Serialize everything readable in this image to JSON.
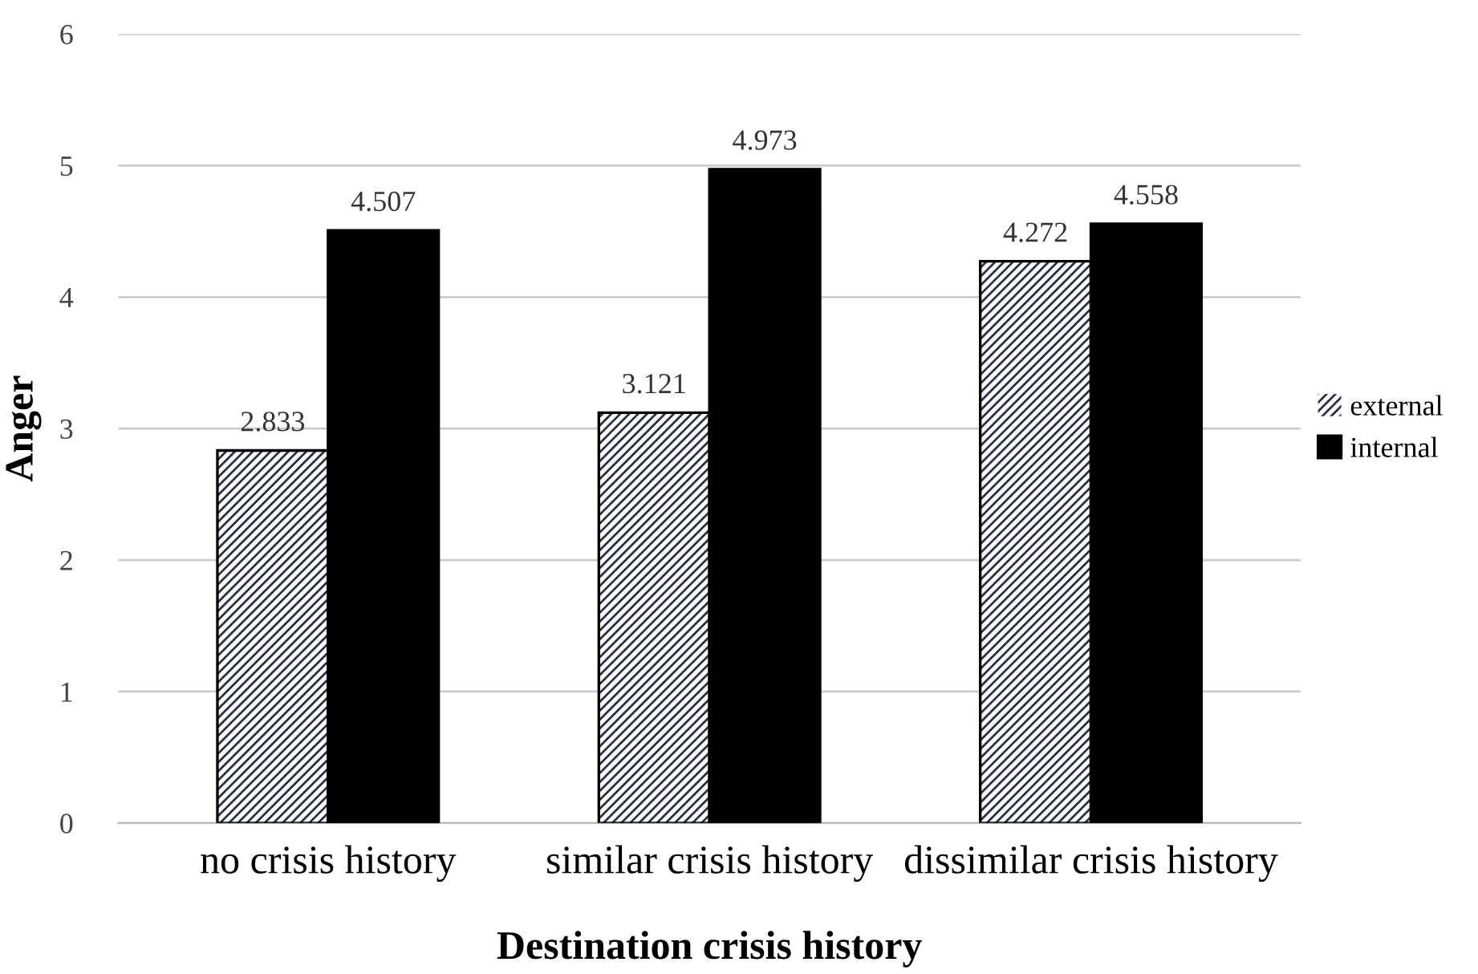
{
  "chart_data": {
    "type": "bar",
    "xlabel": "Destination crisis history",
    "ylabel": "Anger",
    "categories": [
      "no crisis history",
      "similar crisis history",
      "dissimilar crisis history"
    ],
    "series": [
      {
        "name": "external",
        "color": "#2b3145",
        "values": [
          2.833,
          3.121,
          4.272
        ]
      },
      {
        "name": "internal",
        "color": "#000000",
        "values": [
          4.507,
          4.973,
          4.558
        ]
      }
    ],
    "ylim": [
      0,
      6
    ],
    "yticks": [
      0,
      1,
      2,
      3,
      4,
      5,
      6
    ],
    "grid": "y",
    "legend": "right",
    "data_labels": true
  }
}
